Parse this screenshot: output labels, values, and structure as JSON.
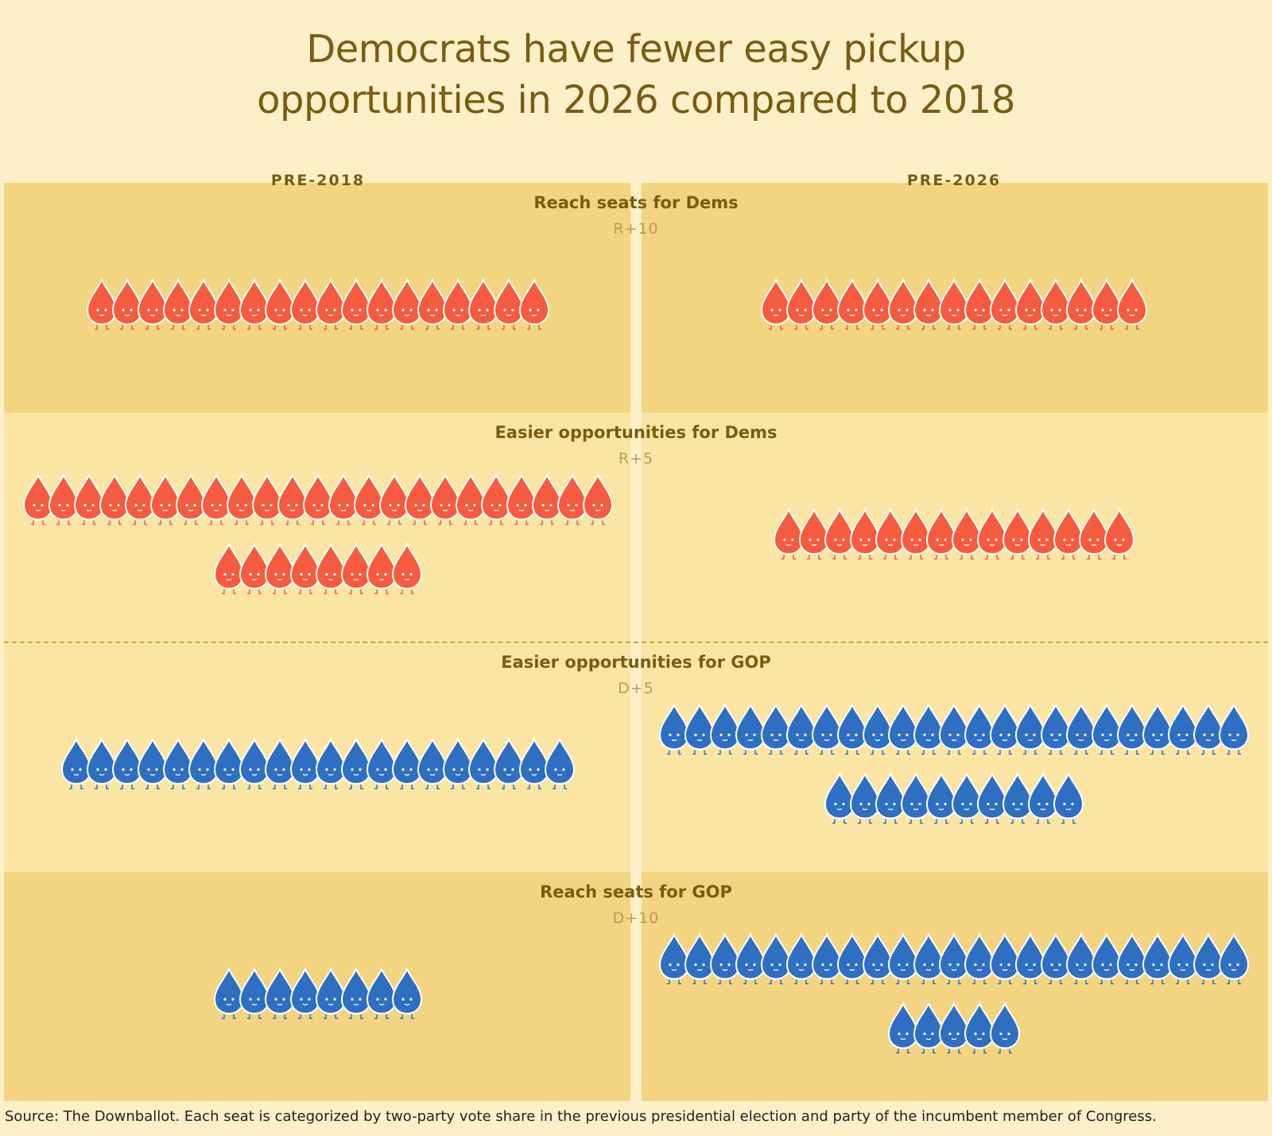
{
  "title_line1": "Democrats have fewer easy pickup",
  "title_line2": "opportunities in 2026 compared to 2018",
  "columns": [
    "PRE-2018",
    "PRE-2026"
  ],
  "source": "Source: The Downballot. Each seat is categorized by two-party vote share in the previous presidential election and party of the incumbent member of Congress.",
  "colors": {
    "rep": "#f55b3e",
    "dem": "#2f6fc1"
  },
  "chart_data": {
    "type": "pictogram",
    "title": "Democrats have fewer easy pickup opportunities in 2026 compared to 2018",
    "unit": "1 drop = 1 seat",
    "series_names": [
      "PRE-2018",
      "PRE-2026"
    ],
    "categories": [
      {
        "label": "Reach seats for Dems",
        "sublabel": "R+10",
        "party": "rep",
        "values": [
          18,
          15
        ]
      },
      {
        "label": "Easier opportunities for Dems",
        "sublabel": "R+5",
        "party": "rep",
        "values": [
          31,
          14
        ]
      },
      {
        "label": "Easier opportunities for GOP",
        "sublabel": "D+5",
        "party": "dem",
        "values": [
          20,
          33
        ]
      },
      {
        "label": "Reach seats for GOP",
        "sublabel": "D+10",
        "party": "dem",
        "values": [
          8,
          28
        ]
      }
    ]
  }
}
